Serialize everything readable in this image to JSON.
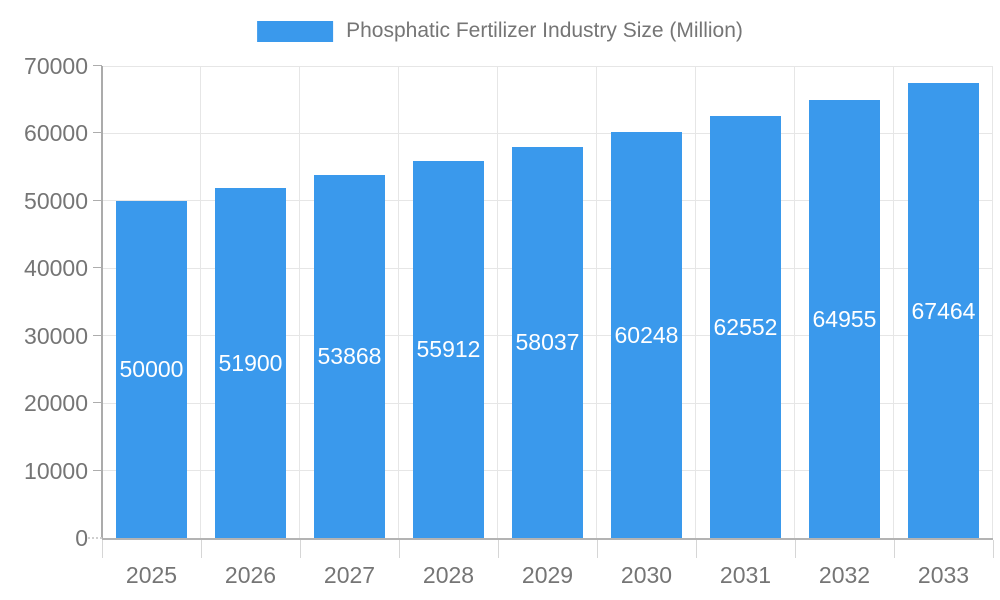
{
  "legend": {
    "label": "Phosphatic Fertilizer Industry Size (Million)"
  },
  "chart_data": {
    "type": "bar",
    "title": "Phosphatic Fertilizer Industry Size (Million)",
    "legend_position": "top-center",
    "categories": [
      "2025",
      "2026",
      "2027",
      "2028",
      "2029",
      "2030",
      "2031",
      "2032",
      "2033"
    ],
    "series": [
      {
        "name": "Phosphatic Fertilizer Industry Size (Million)",
        "values": [
          50000,
          51900,
          53868,
          55912,
          58037,
          60248,
          62552,
          64955,
          67464
        ]
      }
    ],
    "xlabel": "",
    "ylabel": "",
    "ylim": [
      0,
      70000
    ],
    "yticks": [
      0,
      10000,
      20000,
      30000,
      40000,
      50000,
      60000,
      70000
    ],
    "grid": true,
    "bar_label_position": "inside-center",
    "colors": {
      "bar": "#3A99EC",
      "bar_label": "#FFFFFF",
      "axis_text": "#757575",
      "grid_line": "#E6E6E6",
      "axis_line": "#ABABAB",
      "x_tick": "#D6D6D6",
      "background": "#FFFFFF"
    }
  }
}
